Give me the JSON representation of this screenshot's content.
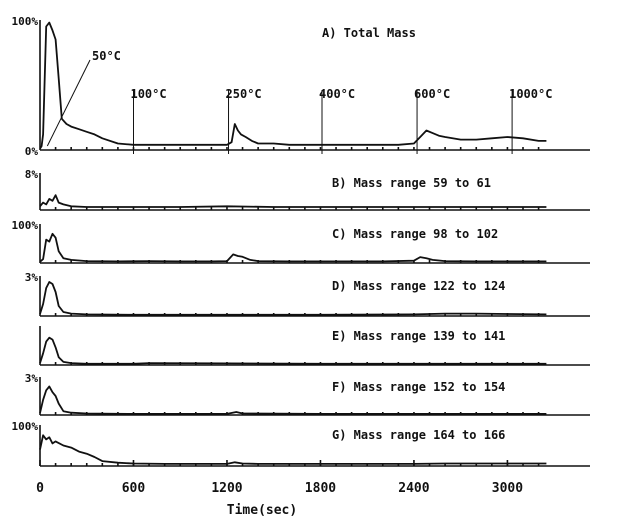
{
  "chart_data": {
    "type": "line",
    "x_label": "Time(sec)",
    "x_ticks": [
      0,
      600,
      1200,
      1800,
      2400,
      3000
    ],
    "x_range": [
      0,
      3250
    ],
    "temperature_markers": [
      {
        "label": "50°C",
        "t": 60
      },
      {
        "label": "100°C",
        "t": 600
      },
      {
        "label": "250°C",
        "t": 1210
      },
      {
        "label": "400°C",
        "t": 1810
      },
      {
        "label": "600°C",
        "t": 2420
      },
      {
        "label": "1000°C",
        "t": 3030
      }
    ],
    "panels": [
      {
        "id": "A",
        "title": "A) Total Mass",
        "scale_top": "100%",
        "scale_bottom": "0%",
        "x": [
          0,
          10,
          20,
          40,
          60,
          80,
          100,
          120,
          140,
          170,
          200,
          250,
          300,
          350,
          400,
          500,
          600,
          700,
          800,
          900,
          1000,
          1100,
          1200,
          1230,
          1250,
          1270,
          1290,
          1320,
          1360,
          1400,
          1500,
          1600,
          1700,
          1800,
          1900,
          2000,
          2100,
          2200,
          2300,
          2400,
          2440,
          2480,
          2520,
          2560,
          2600,
          2700,
          2800,
          2900,
          3000,
          3100,
          3200,
          3250
        ],
        "y": [
          1,
          3,
          12,
          95,
          98,
          92,
          85,
          55,
          24,
          20,
          18,
          16,
          14,
          12,
          9,
          5,
          4,
          4,
          4,
          4,
          4,
          4,
          4,
          6,
          20,
          15,
          12,
          10,
          7,
          5,
          5,
          4,
          4,
          4,
          4,
          4,
          4,
          4,
          4,
          5,
          10,
          15,
          13,
          11,
          10,
          8,
          8,
          9,
          10,
          9,
          7,
          7
        ]
      },
      {
        "id": "B",
        "title": "B) Mass range 59 to 61",
        "scale_top": "8%",
        "x": [
          0,
          20,
          40,
          60,
          80,
          100,
          120,
          150,
          200,
          300,
          600,
          900,
          1200,
          1500,
          1800,
          2100,
          2400,
          2700,
          3000,
          3250
        ],
        "y": [
          10,
          20,
          15,
          30,
          25,
          40,
          20,
          15,
          10,
          8,
          8,
          8,
          10,
          8,
          8,
          8,
          8,
          8,
          8,
          8
        ]
      },
      {
        "id": "C",
        "title": "C) Mass range 98 to 102",
        "scale_top": "100%",
        "x": [
          0,
          20,
          40,
          60,
          80,
          100,
          120,
          150,
          200,
          300,
          500,
          700,
          900,
          1100,
          1200,
          1240,
          1270,
          1300,
          1350,
          1400,
          1600,
          1800,
          2000,
          2200,
          2400,
          2440,
          2480,
          2520,
          2600,
          2800,
          3000,
          3250
        ],
        "y": [
          3,
          10,
          60,
          55,
          75,
          65,
          30,
          12,
          8,
          5,
          4,
          5,
          4,
          4,
          5,
          22,
          18,
          16,
          8,
          5,
          4,
          4,
          4,
          4,
          6,
          15,
          12,
          8,
          5,
          4,
          4,
          4
        ]
      },
      {
        "id": "D",
        "title": "D) Mass range 122 to 124",
        "scale_top": "3%",
        "x": [
          0,
          20,
          40,
          60,
          80,
          100,
          120,
          150,
          200,
          300,
          600,
          1200,
          1800,
          2400,
          2600,
          2800,
          3000,
          3250
        ],
        "y": [
          5,
          30,
          70,
          85,
          80,
          60,
          25,
          10,
          6,
          4,
          3,
          3,
          3,
          4,
          6,
          6,
          5,
          4
        ]
      },
      {
        "id": "E",
        "title": "E) Mass range 139 to 141",
        "x": [
          0,
          20,
          40,
          60,
          80,
          100,
          120,
          150,
          200,
          300,
          600,
          700,
          1200,
          1800,
          2400,
          3000,
          3250
        ],
        "y": [
          5,
          30,
          60,
          70,
          65,
          45,
          20,
          8,
          5,
          3,
          3,
          5,
          4,
          3,
          3,
          3,
          3
        ]
      },
      {
        "id": "F",
        "title": "F) Mass range 152 to 154",
        "scale_top": "3%",
        "x": [
          0,
          20,
          40,
          60,
          80,
          100,
          120,
          150,
          200,
          300,
          600,
          1200,
          1260,
          1300,
          1800,
          2400,
          3000,
          3250
        ],
        "y": [
          5,
          40,
          65,
          75,
          60,
          50,
          30,
          10,
          6,
          4,
          3,
          3,
          8,
          4,
          3,
          3,
          3,
          3
        ]
      },
      {
        "id": "G",
        "title": "G) Mass range 164 to 166",
        "scale_top": "100%",
        "x": [
          0,
          20,
          40,
          60,
          80,
          100,
          150,
          200,
          250,
          300,
          350,
          400,
          500,
          600,
          800,
          1000,
          1200,
          1250,
          1300,
          1400,
          1600,
          1800,
          2000,
          2200,
          2400,
          2600,
          2800,
          3000,
          3250
        ],
        "y": [
          40,
          75,
          65,
          70,
          55,
          60,
          50,
          45,
          35,
          30,
          22,
          12,
          8,
          6,
          5,
          5,
          5,
          9,
          6,
          5,
          5,
          5,
          5,
          5,
          5,
          6,
          6,
          6,
          6
        ]
      }
    ]
  }
}
